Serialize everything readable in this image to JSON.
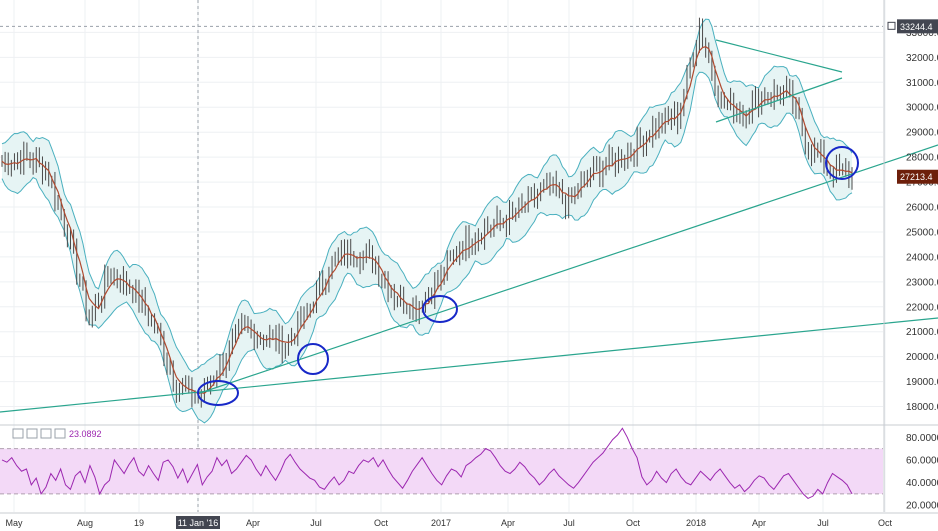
{
  "chart_data": [
    {
      "type": "candlestick",
      "y_ticks": [
        18000,
        19000,
        20000,
        21000,
        22000,
        23000,
        24000,
        25000,
        26000,
        27000,
        28000,
        29000,
        30000,
        31000,
        32000,
        33000
      ],
      "ylim": [
        17300,
        34300
      ],
      "x_ticks": [
        "May",
        "Aug",
        "19",
        "11 Jan '16",
        "Apr",
        "Jul",
        "Oct",
        "2017",
        "Apr",
        "Jul",
        "Oct",
        "2018",
        "Apr",
        "Jul",
        "Oct"
      ],
      "highlighted_x_tick": "11 Jan '16",
      "price_tags": [
        {
          "value": "33244.4",
          "price": 33244.4,
          "style": "crosshair"
        },
        {
          "value": "27213.4",
          "price": 27213.4,
          "style": "last"
        }
      ],
      "close_series": [
        {
          "x": "May",
          "y": 27800
        },
        {
          "x": "Jun",
          "y": 28000
        },
        {
          "x": "Jul",
          "y": 27600
        },
        {
          "x": "Aug",
          "y": 25000
        },
        {
          "x": "Sep",
          "y": 21500
        },
        {
          "x": "Oct",
          "y": 23400
        },
        {
          "x": "Nov",
          "y": 22700
        },
        {
          "x": "Dec",
          "y": 21200
        },
        {
          "x": "Jan '16",
          "y": 18900
        },
        {
          "x": "Feb",
          "y": 18300
        },
        {
          "x": "Mar",
          "y": 19600
        },
        {
          "x": "Apr",
          "y": 21100
        },
        {
          "x": "May",
          "y": 20800
        },
        {
          "x": "Jun",
          "y": 20500
        },
        {
          "x": "Jul",
          "y": 21700
        },
        {
          "x": "Aug",
          "y": 23600
        },
        {
          "x": "Sep",
          "y": 24300
        },
        {
          "x": "Oct",
          "y": 23900
        },
        {
          "x": "Nov",
          "y": 22500
        },
        {
          "x": "Dec",
          "y": 22000
        },
        {
          "x": "2017",
          "y": 23000
        },
        {
          "x": "Feb",
          "y": 24400
        },
        {
          "x": "Mar",
          "y": 25100
        },
        {
          "x": "Apr",
          "y": 25400
        },
        {
          "x": "May",
          "y": 26000
        },
        {
          "x": "Jun",
          "y": 26800
        },
        {
          "x": "Jul",
          "y": 26200
        },
        {
          "x": "Aug",
          "y": 27300
        },
        {
          "x": "Sep",
          "y": 27800
        },
        {
          "x": "Oct",
          "y": 28400
        },
        {
          "x": "Nov",
          "y": 29300
        },
        {
          "x": "Dec",
          "y": 29600
        },
        {
          "x": "2018",
          "y": 33300
        },
        {
          "x": "Feb",
          "y": 30200
        },
        {
          "x": "Mar",
          "y": 29800
        },
        {
          "x": "Apr",
          "y": 30500
        },
        {
          "x": "May",
          "y": 30600
        },
        {
          "x": "Jun",
          "y": 28500
        },
        {
          "x": "Jul",
          "y": 27500
        },
        {
          "x": "Aug",
          "y": 27213
        }
      ],
      "overlays": [
        "Bollinger Bands",
        "Moving average",
        "Trend lines"
      ],
      "marked_lows": 5,
      "colors": {
        "candle": "#4a4a4a",
        "ma": "#b04a2f",
        "band": "#4ab0bf",
        "band_fill": "#e6f4f4",
        "trend": "#2aa58e",
        "circle": "#1728c8",
        "last_tag": "#6d1f0a",
        "crosshair_tag": "#434651"
      }
    },
    {
      "type": "line",
      "indicator_value": "23.0892",
      "y_ticks": [
        20,
        40,
        60,
        80
      ],
      "y_tick_labels": [
        "20.0000",
        "40.0000",
        "60.0000",
        "80.0000"
      ],
      "ylim": [
        14,
        90
      ],
      "bands": [
        30,
        70
      ],
      "values": [
        60,
        58,
        62,
        55,
        50,
        52,
        38,
        44,
        30,
        36,
        48,
        42,
        52,
        38,
        34,
        46,
        50,
        40,
        55,
        45,
        30,
        38,
        42,
        60,
        54,
        48,
        56,
        62,
        50,
        46,
        55,
        48,
        42,
        58,
        60,
        54,
        44,
        52,
        40,
        48,
        56,
        38,
        45,
        50,
        62,
        55,
        60,
        48,
        52,
        58,
        64,
        60,
        52,
        46,
        55,
        48,
        42,
        50,
        60,
        65,
        58,
        52,
        48,
        44,
        42,
        36,
        34,
        40,
        45,
        38,
        42,
        50,
        48,
        55,
        60,
        58,
        62,
        54,
        60,
        52,
        45,
        40,
        35,
        42,
        50,
        56,
        62,
        55,
        48,
        42,
        38,
        46,
        52,
        50,
        45,
        55,
        58,
        62,
        65,
        70,
        68,
        62,
        55,
        50,
        48,
        52,
        58,
        54,
        48,
        44,
        38,
        42,
        48,
        52,
        46,
        42,
        38,
        35,
        40,
        46,
        52,
        58,
        62,
        66,
        72,
        78,
        82,
        88,
        80,
        70,
        62,
        45,
        38,
        42,
        50,
        44,
        40,
        48,
        52,
        45,
        40,
        38,
        44,
        50,
        46,
        42,
        48,
        52,
        46,
        40,
        35,
        38,
        32,
        36,
        42,
        46,
        44,
        38,
        34,
        40,
        46,
        48,
        42,
        36,
        30,
        26,
        28,
        34,
        30,
        40,
        48,
        45,
        42,
        38,
        30
      ],
      "colors": {
        "line": "#9c27b0",
        "band_fill": "#f3d9f7",
        "band_line": "#b0a0b0"
      }
    }
  ]
}
